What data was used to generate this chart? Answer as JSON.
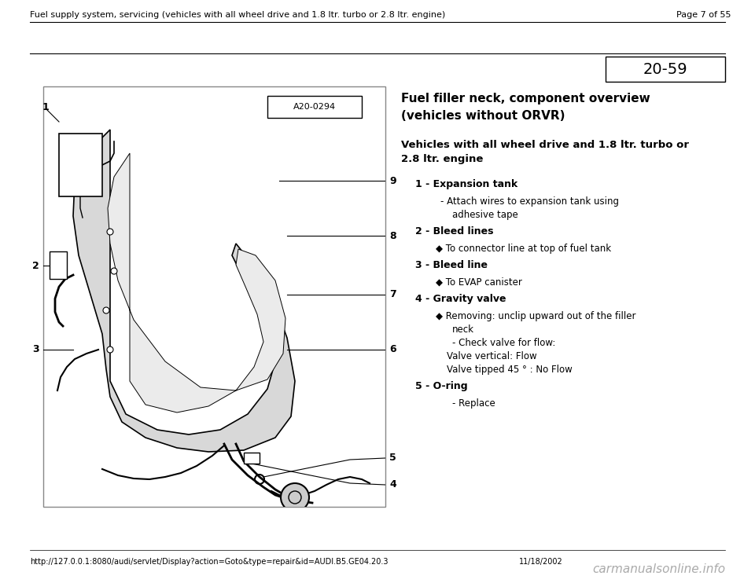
{
  "bg_color": "#ffffff",
  "header_text": "Fuel supply system, servicing (vehicles with all wheel drive and 1.8 ltr. turbo or 2.8 ltr. engine)",
  "page_text": "Page 7 of 55",
  "page_number_box": "20-59",
  "title_line1": "Fuel filler neck, component overview",
  "title_line2": "(vehicles without ORVR)",
  "subtitle_line1": "Vehicles with all wheel drive and 1.8 ltr. turbo or",
  "subtitle_line2": "2.8 ltr. engine",
  "items": [
    {
      "number": "1",
      "label": "Expansion tank",
      "subitems": [
        {
          "type": "dash",
          "text": "Attach wires to expansion tank using"
        },
        {
          "type": "continuation",
          "text": "adhesive tape"
        }
      ]
    },
    {
      "number": "2",
      "label": "Bleed lines",
      "subitems": [
        {
          "type": "diamond",
          "text": "To connector line at top of fuel tank"
        }
      ]
    },
    {
      "number": "3",
      "label": "Bleed line",
      "subitems": [
        {
          "type": "diamond",
          "text": "To EVAP canister"
        }
      ]
    },
    {
      "number": "4",
      "label": "Gravity valve",
      "subitems": [
        {
          "type": "diamond",
          "text": "Removing: unclip upward out of the filler"
        },
        {
          "type": "continuation",
          "text": "neck"
        },
        {
          "type": "dash_indent",
          "text": "Check valve for flow:"
        },
        {
          "type": "plain_indent",
          "text": "Valve vertical: Flow"
        },
        {
          "type": "plain_indent",
          "text": "Valve tipped 45 ° : No Flow"
        }
      ]
    },
    {
      "number": "5",
      "label": "O-ring",
      "subitems": [
        {
          "type": "dash_indent2",
          "text": "Replace"
        }
      ]
    }
  ],
  "footer_url": "http://127.0.0.1:8080/audi/servlet/Display?action=Goto&type=repair&id=AUDI.B5.GE04.20.3",
  "footer_date": "11/18/2002",
  "footer_watermark": "carmanualsonline.info",
  "image_label": "A20-0294",
  "header_font_size": 8,
  "body_font_size": 9,
  "title_font_size": 11,
  "subtitle_font_size": 9.5
}
